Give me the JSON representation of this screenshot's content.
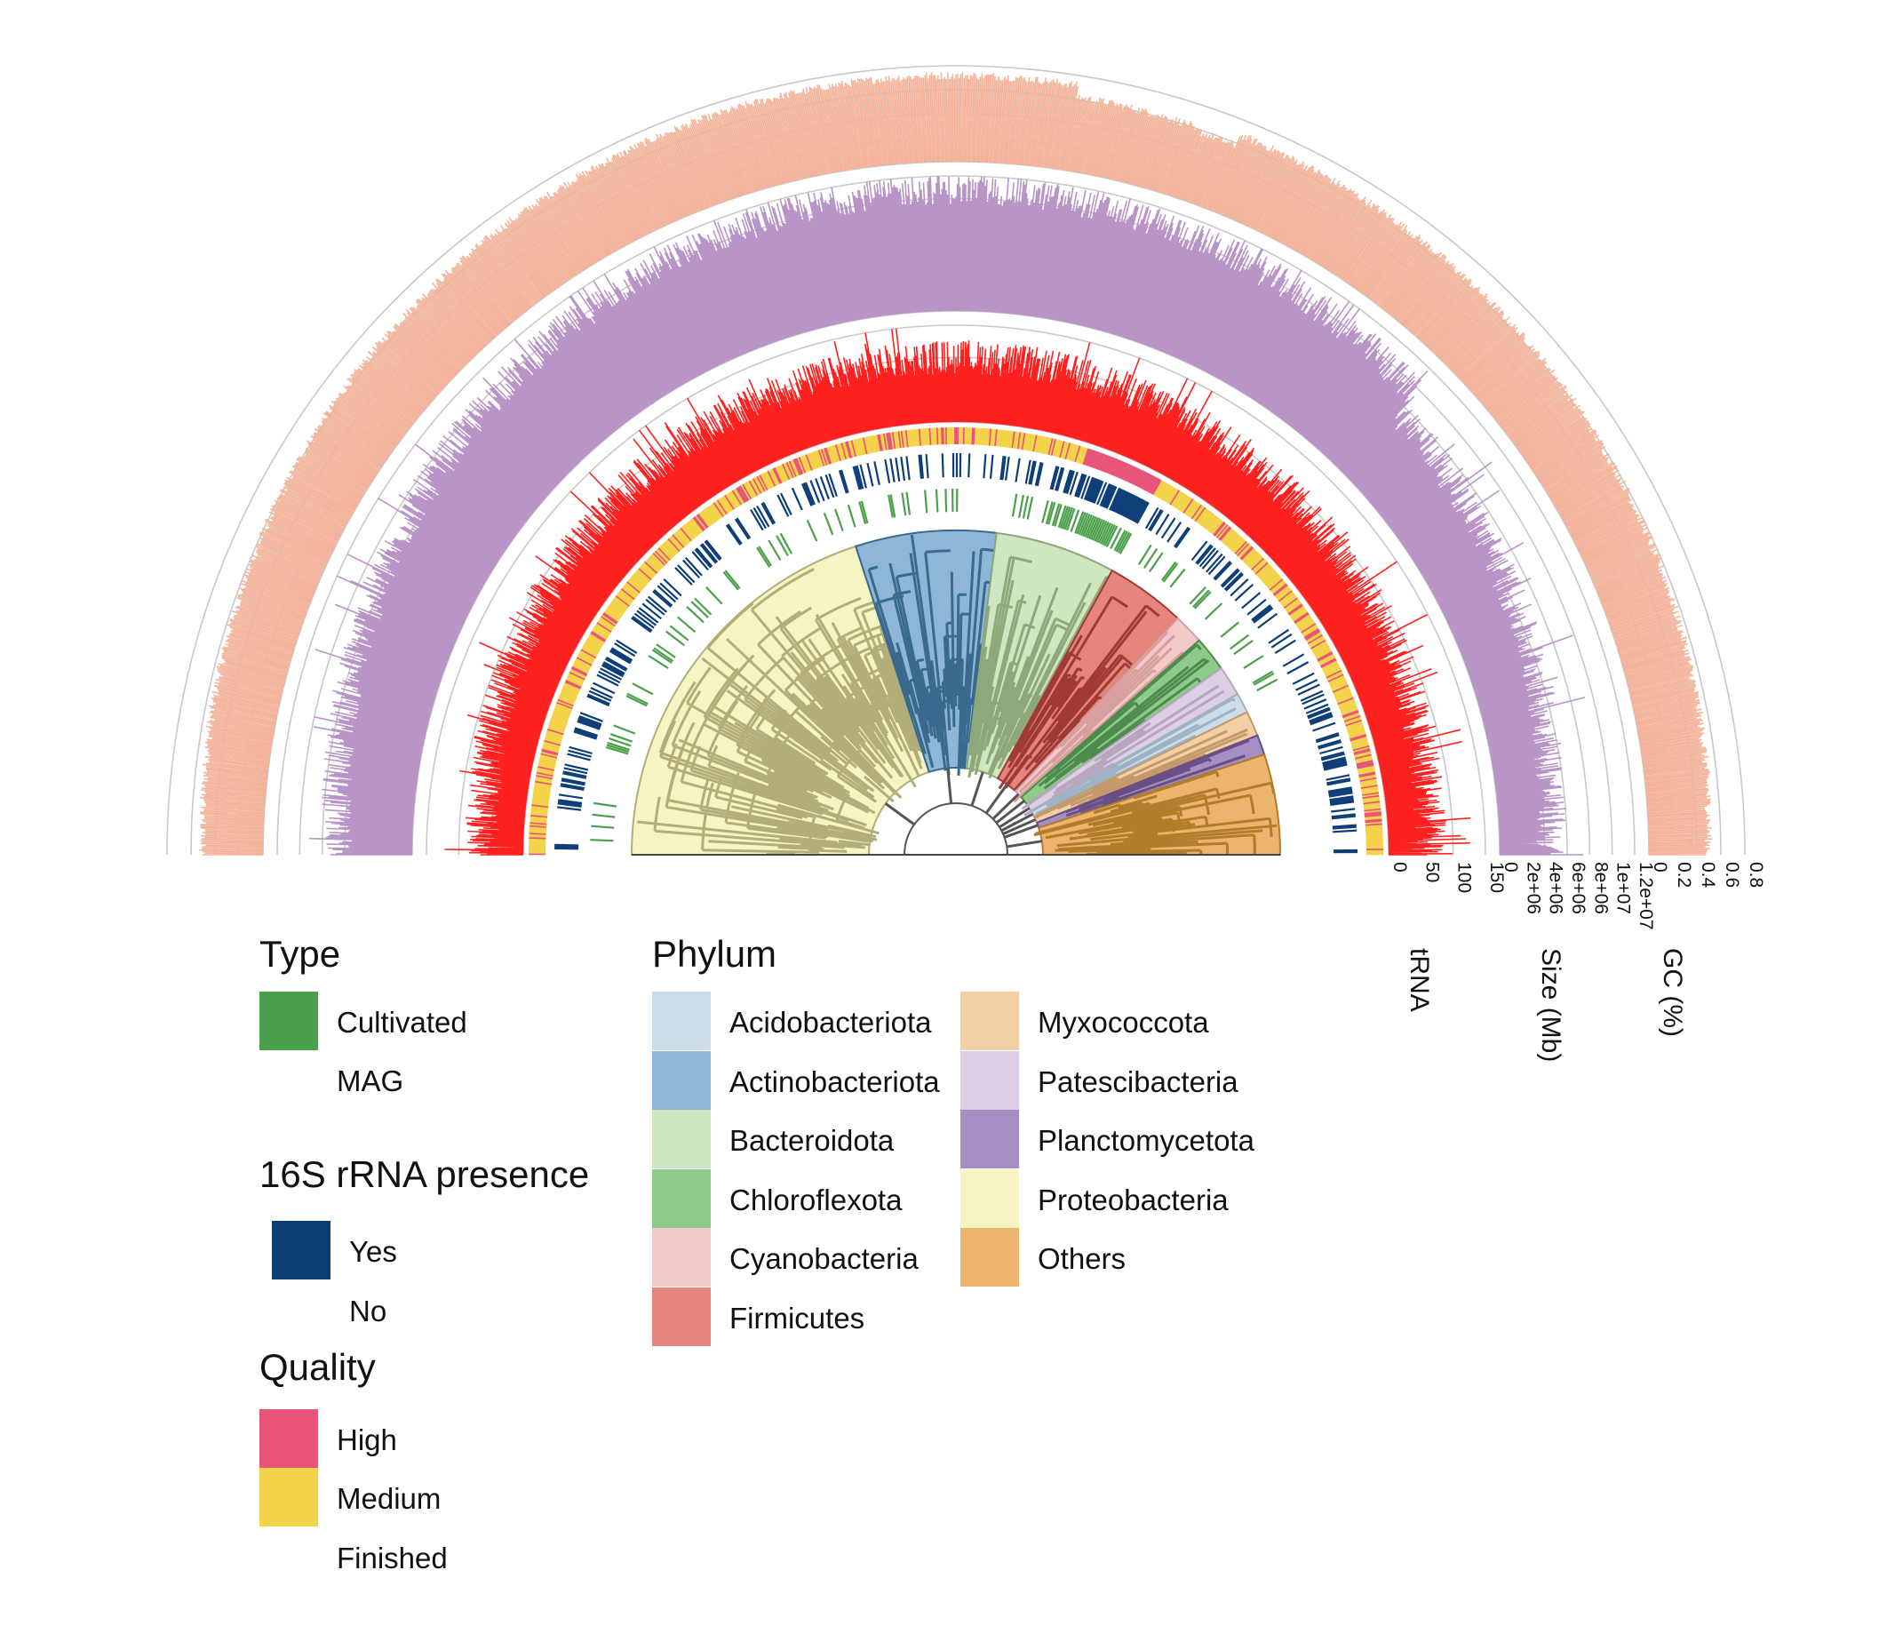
{
  "chart_data": {
    "type": "circular-phylogenetic-tree",
    "layout": "semicircle",
    "tracks": [
      {
        "name": "Type",
        "kind": "strip"
      },
      {
        "name": "16S rRNA presence",
        "kind": "strip"
      },
      {
        "name": "Quality",
        "kind": "strip"
      },
      {
        "name": "tRNA",
        "kind": "bar",
        "color": "#ff2020",
        "range": [
          0,
          150
        ],
        "ticks": [
          "0",
          "50",
          "100",
          "150"
        ]
      },
      {
        "name": "Size (Mb)",
        "kind": "bar",
        "color": "#b994c7",
        "range": [
          0,
          12000000
        ],
        "ticks": [
          "0",
          "2e+06",
          "4e+06",
          "6e+06",
          "8e+06",
          "1e+07",
          "1.2e+07"
        ]
      },
      {
        "name": "GC (%)",
        "kind": "bar",
        "color": "#f2b39a",
        "range": [
          0,
          0.8
        ],
        "ticks": [
          "0",
          "0.2",
          "0.4",
          "0.6",
          "0.8"
        ]
      }
    ],
    "clades": [
      {
        "name": "Proteobacteria",
        "fraction": 0.4,
        "dark": "#b2ae7a",
        "light": "#f5f4c2"
      },
      {
        "name": "Actinobacteriota",
        "fraction": 0.14,
        "dark": "#3a6a8e",
        "light": "#8eb6d6"
      },
      {
        "name": "Bacteroidota",
        "fraction": 0.12,
        "dark": "#8fa87a",
        "light": "#cfe6c1"
      },
      {
        "name": "Firmicutes",
        "fraction": 0.08,
        "dark": "#a03a35",
        "light": "#e6857d"
      },
      {
        "name": "Cyanobacteria",
        "fraction": 0.03,
        "dark": "#d89f9f",
        "light": "#f3c9c9"
      },
      {
        "name": "Chloroflexota",
        "fraction": 0.035,
        "dark": "#4e8c4e",
        "light": "#8ecb8b"
      },
      {
        "name": "Patescibacteria",
        "fraction": 0.03,
        "dark": "#b8a6bf",
        "light": "#dccfe3"
      },
      {
        "name": "Acidobacteriota",
        "fraction": 0.02,
        "dark": "#9fb2c4",
        "light": "#cddde8"
      },
      {
        "name": "Myxococcota",
        "fraction": 0.025,
        "dark": "#c49a6c",
        "light": "#f2cfa5"
      },
      {
        "name": "Planctomycetota",
        "fraction": 0.02,
        "dark": "#6a4e86",
        "light": "#a48ec2"
      },
      {
        "name": "Others",
        "fraction": 0.1,
        "dark": "#b07d2a",
        "light": "#edb46e"
      }
    ]
  },
  "legend": {
    "type": {
      "title": "Type",
      "items": [
        {
          "label": "Cultivated",
          "color": "#4aa04a"
        },
        {
          "label": "MAG",
          "color": ""
        }
      ]
    },
    "rrna": {
      "title": "16S rRNA presence",
      "items": [
        {
          "label": "Yes",
          "color": "#0d3e78"
        },
        {
          "label": "No",
          "color": ""
        }
      ]
    },
    "quality": {
      "title": "Quality",
      "items": [
        {
          "label": "High",
          "color": "#e9557a"
        },
        {
          "label": "Medium",
          "color": "#f3d34a"
        },
        {
          "label": "Finished",
          "color": ""
        }
      ]
    },
    "phylum": {
      "title": "Phylum",
      "items": [
        {
          "label": "Acidobacteriota",
          "color": "#cddde8"
        },
        {
          "label": "Actinobacteriota",
          "color": "#8eb6d6"
        },
        {
          "label": "Bacteroidota",
          "color": "#cfe6c1"
        },
        {
          "label": "Chloroflexota",
          "color": "#8ecb8b"
        },
        {
          "label": "Cyanobacteria",
          "color": "#f3c9c9"
        },
        {
          "label": "Firmicutes",
          "color": "#e6857d"
        },
        {
          "label": "Myxococcota",
          "color": "#f2cfa5"
        },
        {
          "label": "Patescibacteria",
          "color": "#dccfe3"
        },
        {
          "label": "Planctomycetota",
          "color": "#a48ec2"
        },
        {
          "label": "Proteobacteria",
          "color": "#f5f4c2"
        },
        {
          "label": "Others",
          "color": "#edb46e"
        }
      ]
    }
  }
}
